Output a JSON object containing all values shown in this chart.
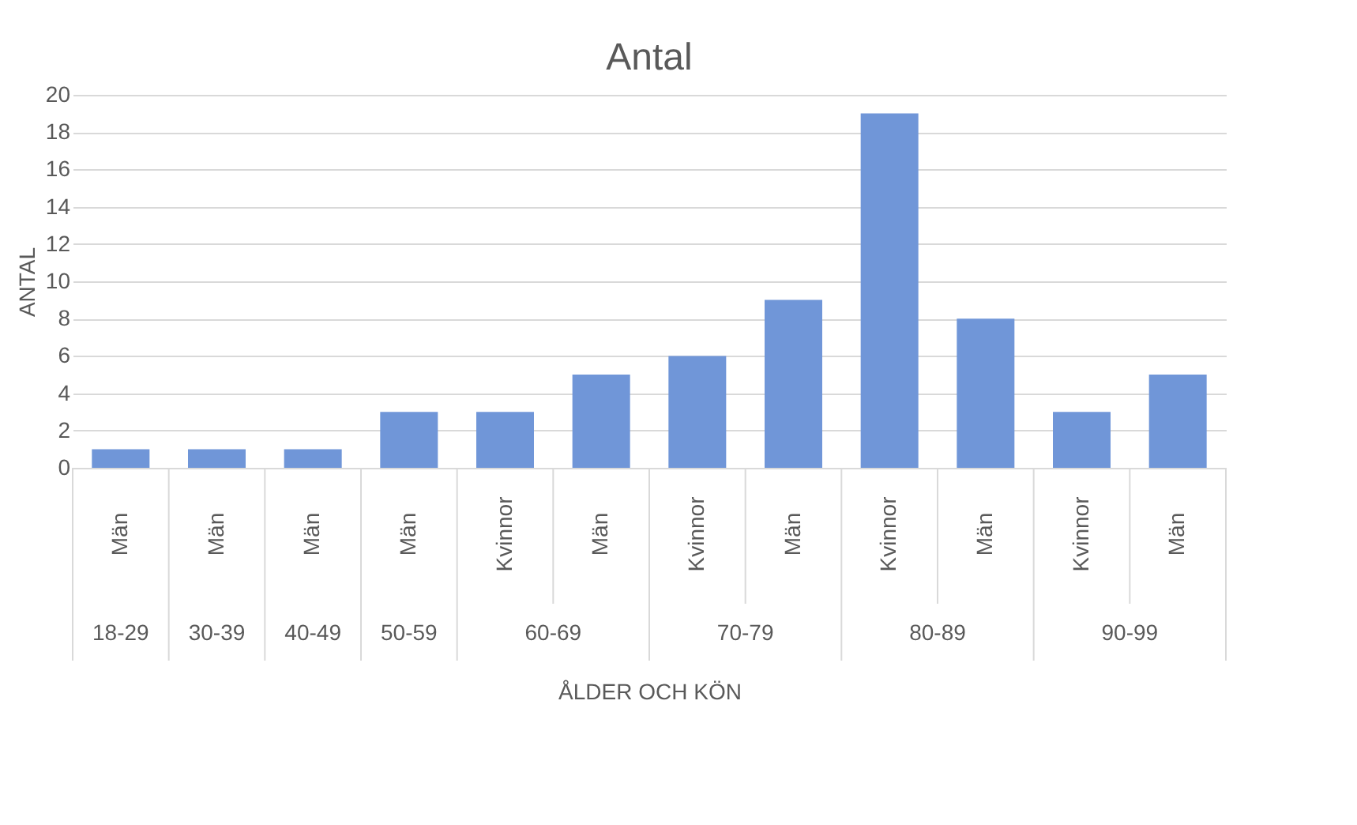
{
  "chart_data": {
    "type": "bar",
    "title": "Antal",
    "xlabel": "ÅLDER OCH KÖN",
    "ylabel": "ANTAL",
    "categories": [
      "Män",
      "Män",
      "Män",
      "Män",
      "Kvinnor",
      "Män",
      "Kvinnor",
      "Män",
      "Kvinnor",
      "Män",
      "Kvinnor",
      "Män"
    ],
    "values": [
      1,
      1,
      1,
      3,
      3,
      5,
      6,
      9,
      19,
      8,
      3,
      5
    ],
    "color": "#7096d8",
    "ylim": [
      0,
      20
    ],
    "yticks": [
      0,
      2,
      4,
      6,
      8,
      10,
      12,
      14,
      16,
      18,
      20
    ],
    "grid": "y",
    "annotations": [
      "18-29",
      "30-39",
      "40-49",
      "50-59",
      "60-69",
      "70-79",
      "80-89",
      "90-99"
    ]
  }
}
